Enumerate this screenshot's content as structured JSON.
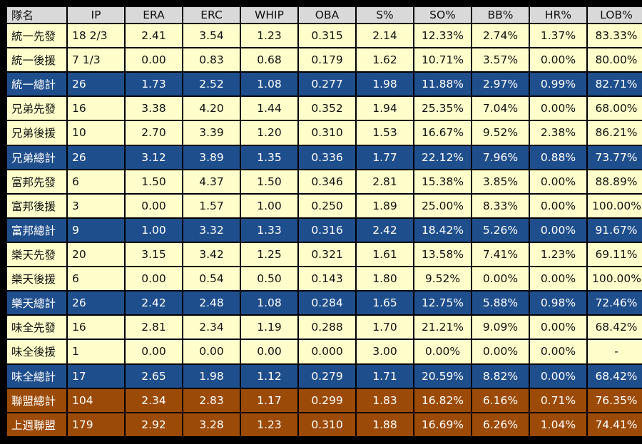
{
  "columns": [
    "隊名",
    "IP",
    "ERA",
    "ERC",
    "WHIP",
    "OBA",
    "S%",
    "SO%",
    "BB%",
    "HR%",
    "LOB%"
  ],
  "rows": [
    {
      "type": "normal",
      "cells": [
        "統一先發",
        "18 2/3",
        "2.41",
        "3.54",
        "1.23",
        "0.315",
        "2.14",
        "12.33%",
        "2.74%",
        "1.37%",
        "83.33%"
      ]
    },
    {
      "type": "normal",
      "cells": [
        "統一後援",
        "7 1/3",
        "0.00",
        "0.83",
        "0.68",
        "0.179",
        "1.62",
        "10.71%",
        "3.57%",
        "0.00%",
        "80.00%"
      ]
    },
    {
      "type": "total",
      "cells": [
        "統一總計",
        "26",
        "1.73",
        "2.52",
        "1.08",
        "0.277",
        "1.98",
        "11.88%",
        "2.97%",
        "0.99%",
        "82.71%"
      ]
    },
    {
      "type": "normal",
      "cells": [
        "兄弟先發",
        "16",
        "3.38",
        "4.20",
        "1.44",
        "0.352",
        "1.94",
        "25.35%",
        "7.04%",
        "0.00%",
        "68.00%"
      ]
    },
    {
      "type": "normal",
      "cells": [
        "兄弟後援",
        "10",
        "2.70",
        "3.39",
        "1.20",
        "0.310",
        "1.53",
        "16.67%",
        "9.52%",
        "2.38%",
        "86.21%"
      ]
    },
    {
      "type": "total",
      "cells": [
        "兄弟總計",
        "26",
        "3.12",
        "3.89",
        "1.35",
        "0.336",
        "1.77",
        "22.12%",
        "7.96%",
        "0.88%",
        "73.77%"
      ]
    },
    {
      "type": "normal",
      "cells": [
        "富邦先發",
        "6",
        "1.50",
        "4.37",
        "1.50",
        "0.346",
        "2.81",
        "15.38%",
        "3.85%",
        "0.00%",
        "88.89%"
      ]
    },
    {
      "type": "normal",
      "cells": [
        "富邦後援",
        "3",
        "0.00",
        "1.57",
        "1.00",
        "0.250",
        "1.89",
        "25.00%",
        "8.33%",
        "0.00%",
        "100.00%"
      ]
    },
    {
      "type": "total",
      "cells": [
        "富邦總計",
        "9",
        "1.00",
        "3.32",
        "1.33",
        "0.316",
        "2.42",
        "18.42%",
        "5.26%",
        "0.00%",
        "91.67%"
      ]
    },
    {
      "type": "normal",
      "cells": [
        "樂天先發",
        "20",
        "3.15",
        "3.42",
        "1.25",
        "0.321",
        "1.61",
        "13.58%",
        "7.41%",
        "1.23%",
        "69.11%"
      ]
    },
    {
      "type": "normal",
      "cells": [
        "樂天後援",
        "6",
        "0.00",
        "0.54",
        "0.50",
        "0.143",
        "1.80",
        "9.52%",
        "0.00%",
        "0.00%",
        "100.00%"
      ]
    },
    {
      "type": "total",
      "cells": [
        "樂天總計",
        "26",
        "2.42",
        "2.48",
        "1.08",
        "0.284",
        "1.65",
        "12.75%",
        "5.88%",
        "0.98%",
        "72.46%"
      ]
    },
    {
      "type": "normal",
      "cells": [
        "味全先發",
        "16",
        "2.81",
        "2.34",
        "1.19",
        "0.288",
        "1.70",
        "21.21%",
        "9.09%",
        "0.00%",
        "68.42%"
      ]
    },
    {
      "type": "normal",
      "cells": [
        "味全後援",
        "1",
        "0.00",
        "0.00",
        "0.00",
        "0.000",
        "3.00",
        "0.00%",
        "0.00%",
        "0.00%",
        "-"
      ]
    },
    {
      "type": "total",
      "cells": [
        "味全總計",
        "17",
        "2.65",
        "1.98",
        "1.12",
        "0.279",
        "1.71",
        "20.59%",
        "8.82%",
        "0.00%",
        "68.42%"
      ]
    },
    {
      "type": "league",
      "cells": [
        "聯盟總計",
        "104",
        "2.34",
        "2.83",
        "1.17",
        "0.299",
        "1.83",
        "16.82%",
        "6.16%",
        "0.71%",
        "76.35%"
      ]
    },
    {
      "type": "league",
      "cells": [
        "上週聯盟",
        "179",
        "2.92",
        "3.28",
        "1.23",
        "0.310",
        "1.88",
        "16.69%",
        "6.26%",
        "1.04%",
        "74.41%"
      ]
    }
  ],
  "colors": {
    "header": "#d9d9d9",
    "normal": "#ffffcc",
    "total": "#1f4e8c",
    "league": "#9c4a07"
  }
}
